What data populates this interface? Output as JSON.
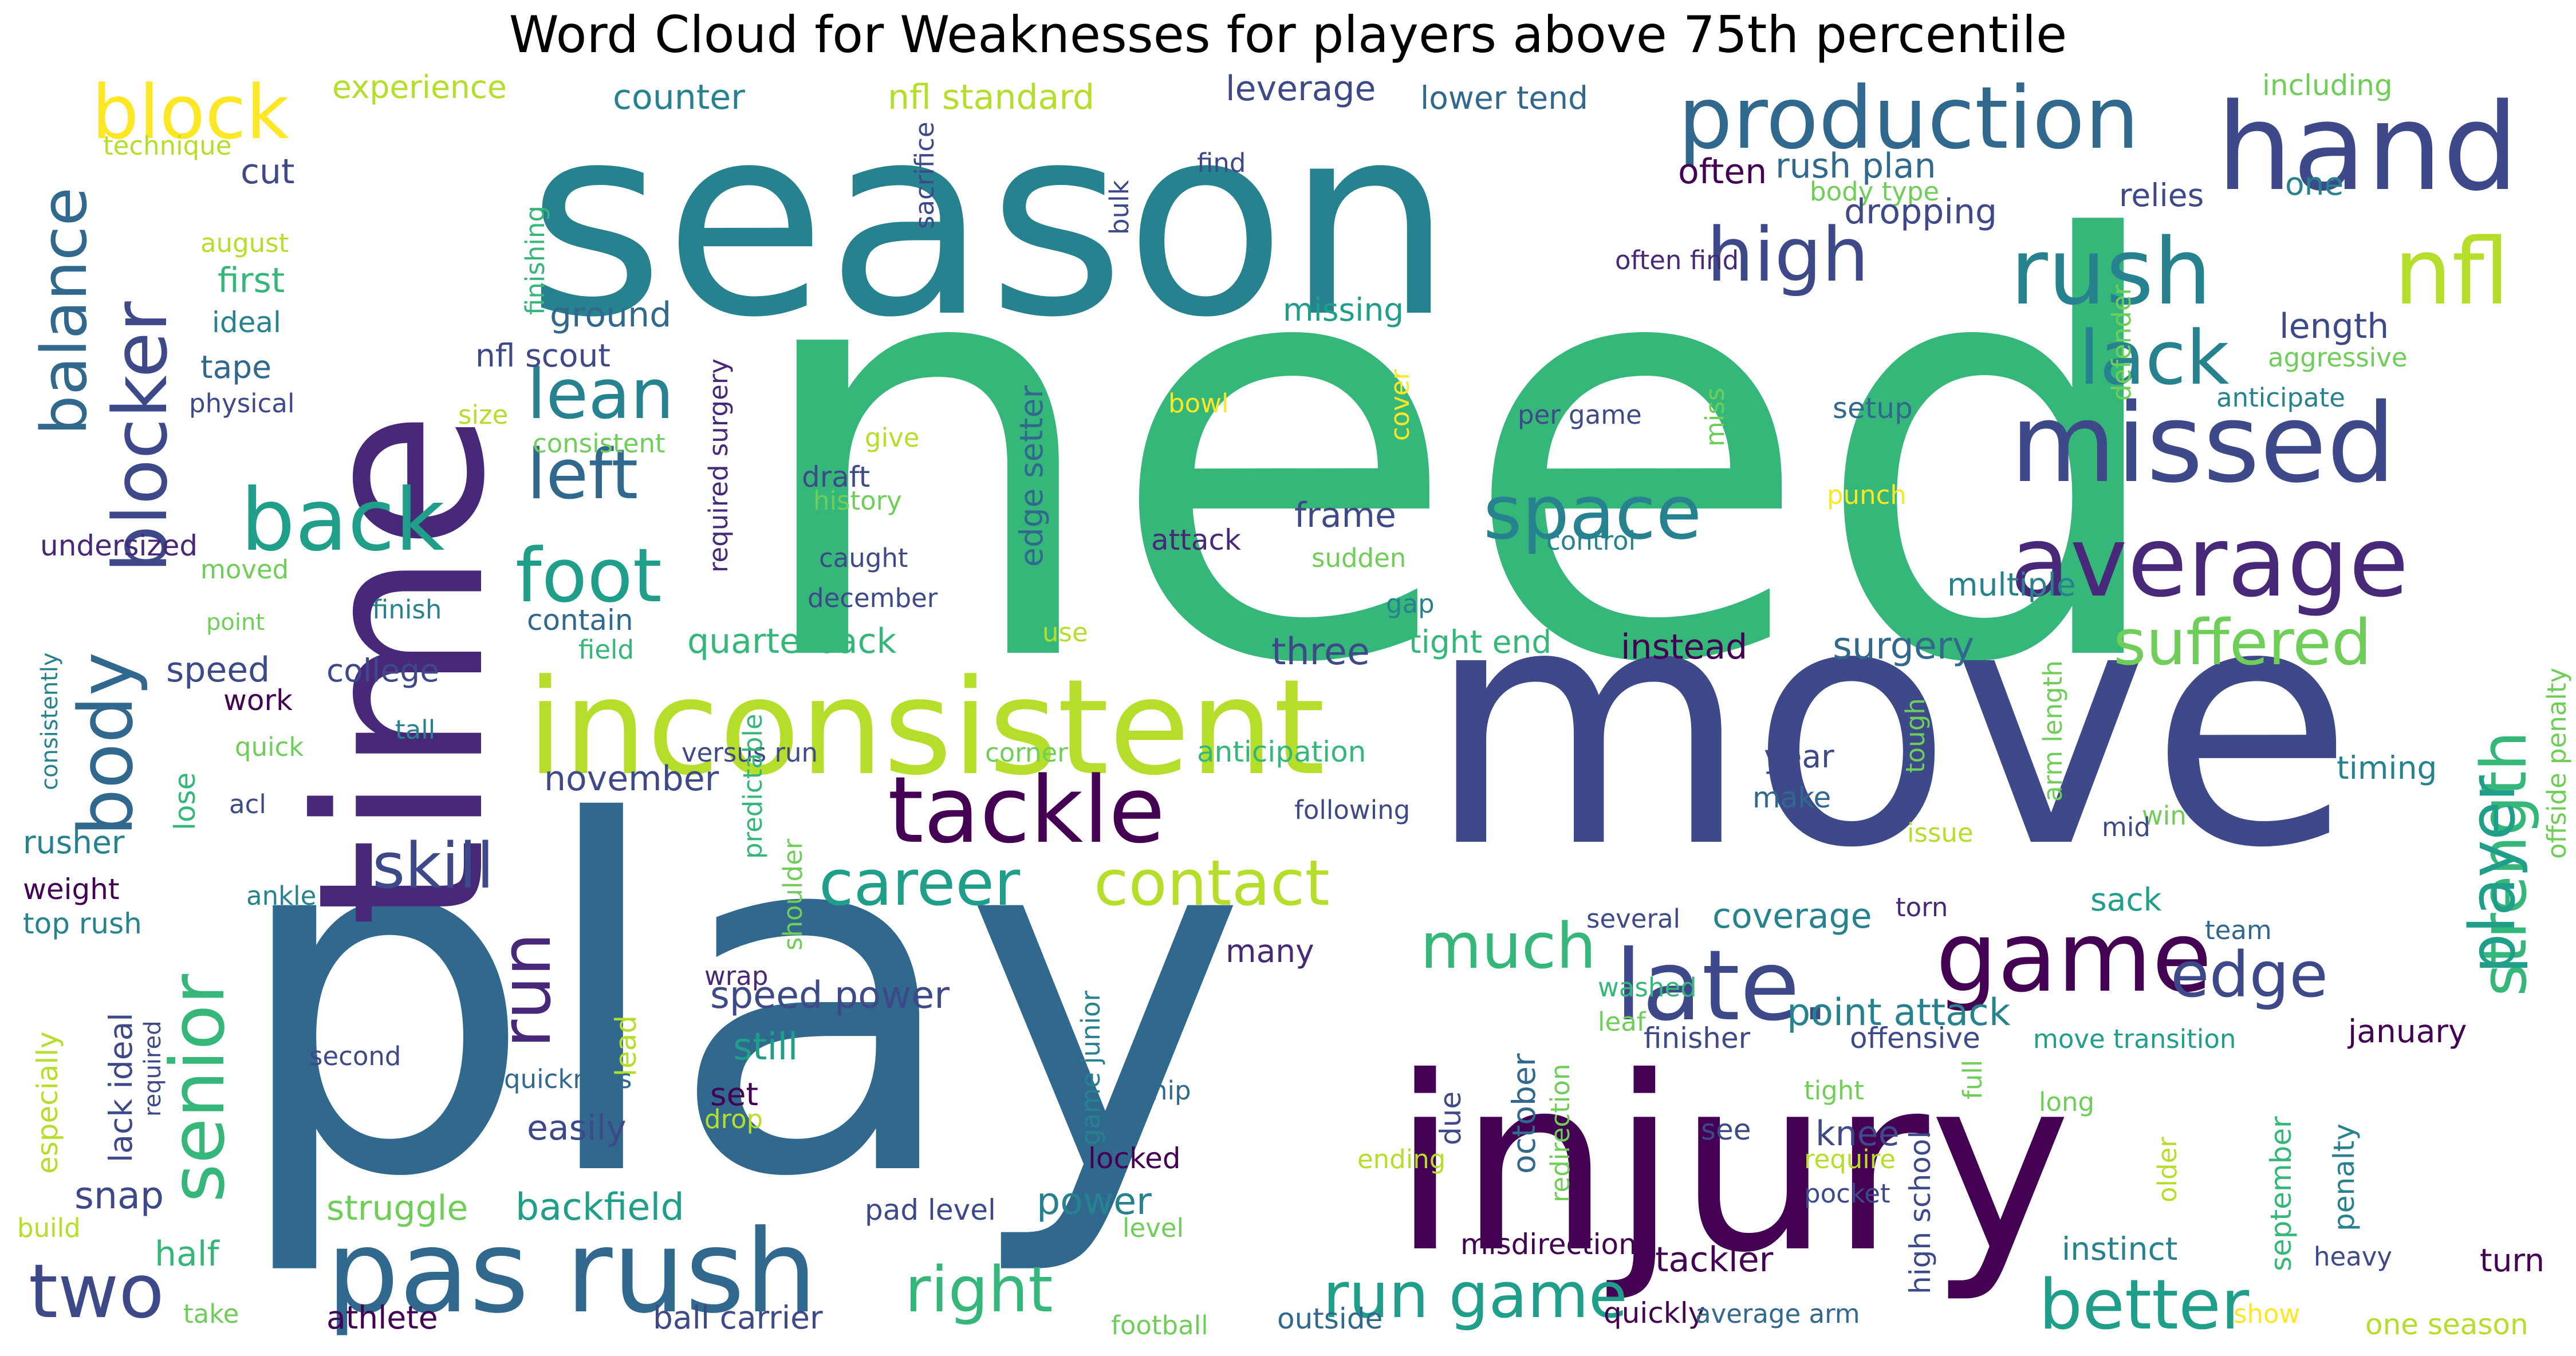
{
  "title": "Word Cloud for Weaknesses for players above 75th percentile",
  "colors": {
    "background": "#ffffff",
    "palette": [
      "#440154",
      "#482878",
      "#3e4989",
      "#31688e",
      "#26828e",
      "#1f9e89",
      "#35b779",
      "#6ece58",
      "#b5de2b",
      "#fde725"
    ]
  },
  "words": [
    {
      "text": "need",
      "color": "#35b779"
    },
    {
      "text": "play",
      "color": "#31688e"
    },
    {
      "text": "move",
      "color": "#3e4989"
    },
    {
      "text": "season",
      "color": "#26828e"
    },
    {
      "text": "time",
      "color": "#482878"
    },
    {
      "text": "injury",
      "color": "#440154"
    },
    {
      "text": "inconsistent",
      "color": "#b5de2b"
    },
    {
      "text": "pas rush",
      "color": "#31688e"
    },
    {
      "text": "hand",
      "color": "#3e4989"
    },
    {
      "text": "production",
      "color": "#31688e"
    },
    {
      "text": "missed",
      "color": "#3e4989"
    },
    {
      "text": "average",
      "color": "#482878"
    },
    {
      "text": "rush",
      "color": "#26828e"
    },
    {
      "text": "nfl",
      "color": "#b5de2b"
    },
    {
      "text": "tackle",
      "color": "#440154"
    },
    {
      "text": "late.",
      "color": "#3e4989"
    },
    {
      "text": "game",
      "color": "#440154"
    },
    {
      "text": "block",
      "color": "#fde725"
    },
    {
      "text": "balance",
      "color": "#31688e"
    },
    {
      "text": "blocker",
      "color": "#3e4989"
    },
    {
      "text": "back",
      "color": "#1f9e89"
    },
    {
      "text": "body",
      "color": "#31688e"
    },
    {
      "text": "senior",
      "color": "#35b779"
    },
    {
      "text": "foot",
      "color": "#1f9e89"
    },
    {
      "text": "left",
      "color": "#31688e"
    },
    {
      "text": "lean",
      "color": "#26828e"
    },
    {
      "text": "space",
      "color": "#26828e"
    },
    {
      "text": "high",
      "color": "#3e4989"
    },
    {
      "text": "lack",
      "color": "#26828e"
    },
    {
      "text": "strength",
      "color": "#35b779"
    },
    {
      "text": "player",
      "color": "#1f9e89"
    },
    {
      "text": "suffered",
      "color": "#6ece58"
    },
    {
      "text": "career",
      "color": "#1f9e89"
    },
    {
      "text": "contact",
      "color": "#b5de2b"
    },
    {
      "text": "skill",
      "color": "#3e4989"
    },
    {
      "text": "edge",
      "color": "#3e4989"
    },
    {
      "text": "much",
      "color": "#35b779"
    },
    {
      "text": "run",
      "color": "#482878"
    },
    {
      "text": "two",
      "color": "#3e4989"
    },
    {
      "text": "right",
      "color": "#35b779"
    },
    {
      "text": "run game",
      "color": "#1f9e89"
    },
    {
      "text": "better",
      "color": "#1f9e89"
    },
    {
      "text": "counter",
      "color": "#26828e"
    },
    {
      "text": "nfl standard",
      "color": "#b5de2b"
    },
    {
      "text": "leverage",
      "color": "#3e4989"
    },
    {
      "text": "lower tend",
      "color": "#31688e"
    },
    {
      "text": "including",
      "color": "#6ece58"
    },
    {
      "text": "experience",
      "color": "#b5de2b"
    },
    {
      "text": "technique",
      "color": "#b5de2b"
    },
    {
      "text": "cut",
      "color": "#3e4989"
    },
    {
      "text": "first",
      "color": "#35b779"
    },
    {
      "text": "august",
      "color": "#b5de2b"
    },
    {
      "text": "ideal",
      "color": "#26828e"
    },
    {
      "text": "tape",
      "color": "#31688e"
    },
    {
      "text": "physical",
      "color": "#3e4989"
    },
    {
      "text": "ground",
      "color": "#31688e"
    },
    {
      "text": "nfl scout",
      "color": "#3e4989"
    },
    {
      "text": "size",
      "color": "#b5de2b"
    },
    {
      "text": "consistent",
      "color": "#6ece58"
    },
    {
      "text": "finishing",
      "color": "#35b779"
    },
    {
      "text": "sacrifice",
      "color": "#3e4989"
    },
    {
      "text": "find",
      "color": "#3e4989"
    },
    {
      "text": "bulk",
      "color": "#3e4989"
    },
    {
      "text": "rush plan",
      "color": "#31688e"
    },
    {
      "text": "often",
      "color": "#440154"
    },
    {
      "text": "body type",
      "color": "#6ece58"
    },
    {
      "text": "relies",
      "color": "#3e4989"
    },
    {
      "text": "one",
      "color": "#26828e"
    },
    {
      "text": "dropping",
      "color": "#3e4989"
    },
    {
      "text": "often find",
      "color": "#482878"
    },
    {
      "text": "missing",
      "color": "#1f9e89"
    },
    {
      "text": "length",
      "color": "#3e4989"
    },
    {
      "text": "aggressive",
      "color": "#6ece58"
    },
    {
      "text": "anticipate",
      "color": "#26828e"
    },
    {
      "text": "defender",
      "color": "#6ece58"
    },
    {
      "text": "setup",
      "color": "#31688e"
    },
    {
      "text": "per game",
      "color": "#3e4989"
    },
    {
      "text": "bowl",
      "color": "#fde725"
    },
    {
      "text": "cover",
      "color": "#fde725"
    },
    {
      "text": "miss",
      "color": "#6ece58"
    },
    {
      "text": "punch",
      "color": "#fde725"
    },
    {
      "text": "give",
      "color": "#b5de2b"
    },
    {
      "text": "draft",
      "color": "#3e4989"
    },
    {
      "text": "history",
      "color": "#6ece58"
    },
    {
      "text": "edge setter",
      "color": "#31688e"
    },
    {
      "text": "required surgery",
      "color": "#482878"
    },
    {
      "text": "frame",
      "color": "#3e4989"
    },
    {
      "text": "attack",
      "color": "#482878"
    },
    {
      "text": "sudden",
      "color": "#6ece58"
    },
    {
      "text": "control",
      "color": "#26828e"
    },
    {
      "text": "multiple",
      "color": "#26828e"
    },
    {
      "text": "offside penalty",
      "color": "#6ece58"
    },
    {
      "text": "undersized",
      "color": "#482878"
    },
    {
      "text": "moved",
      "color": "#6ece58"
    },
    {
      "text": "point",
      "color": "#6ece58"
    },
    {
      "text": "finish",
      "color": "#26828e"
    },
    {
      "text": "contain",
      "color": "#31688e"
    },
    {
      "text": "caught",
      "color": "#3e4989"
    },
    {
      "text": "december",
      "color": "#3e4989"
    },
    {
      "text": "gap",
      "color": "#26828e"
    },
    {
      "text": "field",
      "color": "#35b779"
    },
    {
      "text": "quarterback",
      "color": "#35b779"
    },
    {
      "text": "use",
      "color": "#b5de2b"
    },
    {
      "text": "three",
      "color": "#3e4989"
    },
    {
      "text": "tight end",
      "color": "#35b779"
    },
    {
      "text": "instead",
      "color": "#440154"
    },
    {
      "text": "surgery",
      "color": "#31688e"
    },
    {
      "text": "consistently",
      "color": "#26828e"
    },
    {
      "text": "speed",
      "color": "#3e4989"
    },
    {
      "text": "college",
      "color": "#3e4989"
    },
    {
      "text": "work",
      "color": "#440154"
    },
    {
      "text": "tall",
      "color": "#26828e"
    },
    {
      "text": "quick",
      "color": "#6ece58"
    },
    {
      "text": "november",
      "color": "#3e4989"
    },
    {
      "text": "versus run",
      "color": "#3e4989"
    },
    {
      "text": "predictable",
      "color": "#35b779"
    },
    {
      "text": "corner",
      "color": "#6ece58"
    },
    {
      "text": "anticipation",
      "color": "#35b779"
    },
    {
      "text": "tough",
      "color": "#6ece58"
    },
    {
      "text": "arm length",
      "color": "#6ece58"
    },
    {
      "text": "year",
      "color": "#3e4989"
    },
    {
      "text": "make",
      "color": "#31688e"
    },
    {
      "text": "timing",
      "color": "#26828e"
    },
    {
      "text": "lose",
      "color": "#35b779"
    },
    {
      "text": "acl",
      "color": "#3e4989"
    },
    {
      "text": "following",
      "color": "#3e4989"
    },
    {
      "text": "win",
      "color": "#6ece58"
    },
    {
      "text": "issue",
      "color": "#b5de2b"
    },
    {
      "text": "mid",
      "color": "#3e4989"
    },
    {
      "text": "rusher",
      "color": "#26828e"
    },
    {
      "text": "weight",
      "color": "#440154"
    },
    {
      "text": "ankle",
      "color": "#26828e"
    },
    {
      "text": "top rush",
      "color": "#26828e"
    },
    {
      "text": "shoulder",
      "color": "#6ece58"
    },
    {
      "text": "several",
      "color": "#3e4989"
    },
    {
      "text": "coverage",
      "color": "#26828e"
    },
    {
      "text": "torn",
      "color": "#482878"
    },
    {
      "text": "sack",
      "color": "#1f9e89"
    },
    {
      "text": "team",
      "color": "#31688e"
    },
    {
      "text": "many",
      "color": "#482878"
    },
    {
      "text": "speed power",
      "color": "#3e4989"
    },
    {
      "text": "point attack",
      "color": "#26828e"
    },
    {
      "text": "washed",
      "color": "#35b779"
    },
    {
      "text": "leaf",
      "color": "#6ece58"
    },
    {
      "text": "january",
      "color": "#440154"
    },
    {
      "text": "especially",
      "color": "#b5de2b"
    },
    {
      "text": "lack ideal",
      "color": "#3e4989"
    },
    {
      "text": "lead",
      "color": "#b5de2b"
    },
    {
      "text": "wrap",
      "color": "#482878"
    },
    {
      "text": "still",
      "color": "#1f9e89"
    },
    {
      "text": "game junior",
      "color": "#26828e"
    },
    {
      "text": "finisher",
      "color": "#3e4989"
    },
    {
      "text": "offensive",
      "color": "#3e4989"
    },
    {
      "text": "move transition",
      "color": "#1f9e89"
    },
    {
      "text": "full",
      "color": "#6ece58"
    },
    {
      "text": "second",
      "color": "#3e4989"
    },
    {
      "text": "required",
      "color": "#3e4989"
    },
    {
      "text": "quickness",
      "color": "#31688e"
    },
    {
      "text": "set",
      "color": "#440154"
    },
    {
      "text": "drop",
      "color": "#b5de2b"
    },
    {
      "text": "hip",
      "color": "#31688e"
    },
    {
      "text": "due",
      "color": "#3e4989"
    },
    {
      "text": "october",
      "color": "#31688e"
    },
    {
      "text": "knee",
      "color": "#3e4989"
    },
    {
      "text": "redirection",
      "color": "#6ece58"
    },
    {
      "text": "tight",
      "color": "#6ece58"
    },
    {
      "text": "long",
      "color": "#6ece58"
    },
    {
      "text": "see",
      "color": "#3e4989"
    },
    {
      "text": "require",
      "color": "#b5de2b"
    },
    {
      "text": "easily",
      "color": "#3e4989"
    },
    {
      "text": "locked",
      "color": "#440154"
    },
    {
      "text": "ending",
      "color": "#b5de2b"
    },
    {
      "text": "pocket",
      "color": "#3e4989"
    },
    {
      "text": "older",
      "color": "#b5de2b"
    },
    {
      "text": "september",
      "color": "#35b779"
    },
    {
      "text": "penalty",
      "color": "#26828e"
    },
    {
      "text": "high school",
      "color": "#3e4989"
    },
    {
      "text": "snap",
      "color": "#3e4989"
    },
    {
      "text": "struggle",
      "color": "#6ece58"
    },
    {
      "text": "backfield",
      "color": "#1f9e89"
    },
    {
      "text": "power",
      "color": "#26828e"
    },
    {
      "text": "pad level",
      "color": "#3e4989"
    },
    {
      "text": "level",
      "color": "#6ece58"
    },
    {
      "text": "tackler",
      "color": "#440154"
    },
    {
      "text": "misdirection",
      "color": "#440154"
    },
    {
      "text": "instinct",
      "color": "#26828e"
    },
    {
      "text": "heavy",
      "color": "#3e4989"
    },
    {
      "text": "turn",
      "color": "#440154"
    },
    {
      "text": "build",
      "color": "#b5de2b"
    },
    {
      "text": "half",
      "color": "#35b779"
    },
    {
      "text": "take",
      "color": "#6ece58"
    },
    {
      "text": "athlete",
      "color": "#440154"
    },
    {
      "text": "ball carrier",
      "color": "#3e4989"
    },
    {
      "text": "football",
      "color": "#6ece58"
    },
    {
      "text": "outside",
      "color": "#31688e"
    },
    {
      "text": "quickly",
      "color": "#440154"
    },
    {
      "text": "average arm",
      "color": "#31688e"
    },
    {
      "text": "show",
      "color": "#fde725"
    },
    {
      "text": "one season",
      "color": "#b5de2b"
    }
  ]
}
